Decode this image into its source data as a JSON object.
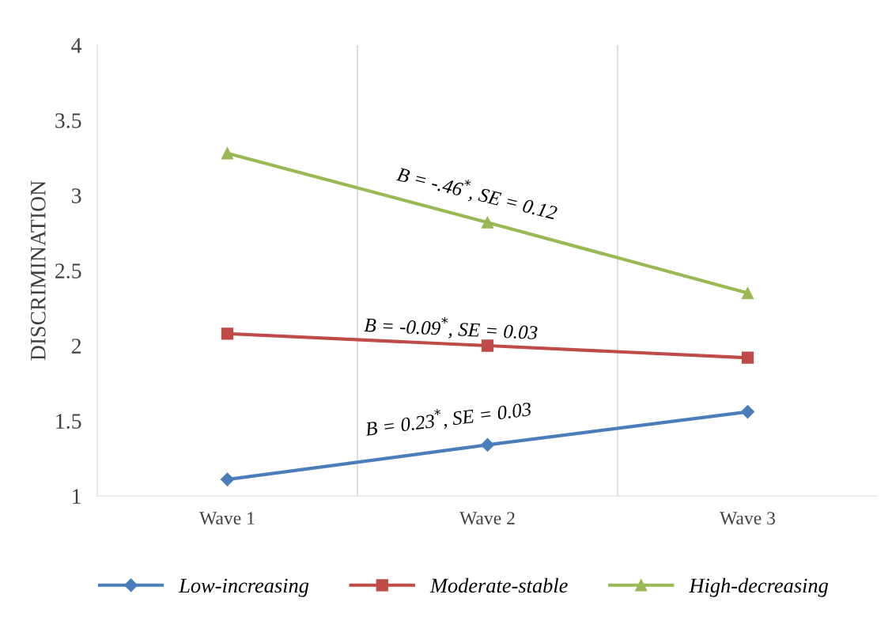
{
  "chart_data": {
    "type": "line",
    "ylabel": "DISCRIMINATION",
    "categories": [
      "Wave 1",
      "Wave 2",
      "Wave 3"
    ],
    "series": [
      {
        "name": "Low-increasing",
        "color": "#4a7ebb",
        "values": [
          1.11,
          1.34,
          1.56
        ],
        "marker": "diamond"
      },
      {
        "name": "Moderate-stable",
        "color": "#be4b48",
        "values": [
          2.08,
          2.0,
          1.92
        ],
        "marker": "square"
      },
      {
        "name": "High-decreasing",
        "color": "#98b954",
        "values": [
          3.28,
          2.82,
          2.35
        ],
        "marker": "triangle"
      }
    ],
    "ylim": [
      1,
      4
    ],
    "yticks": [
      1,
      1.5,
      2,
      2.5,
      3,
      3.5,
      4
    ],
    "grid": "x",
    "legend": "bottom",
    "line_style": "solid",
    "annotations": [
      "B = -.46$^{*}$, SE = 0.12",
      "B = -0.09$^{*}$, SE = 0.03",
      "B = 0.23$^{*}$, SE = 0.03"
    ]
  }
}
